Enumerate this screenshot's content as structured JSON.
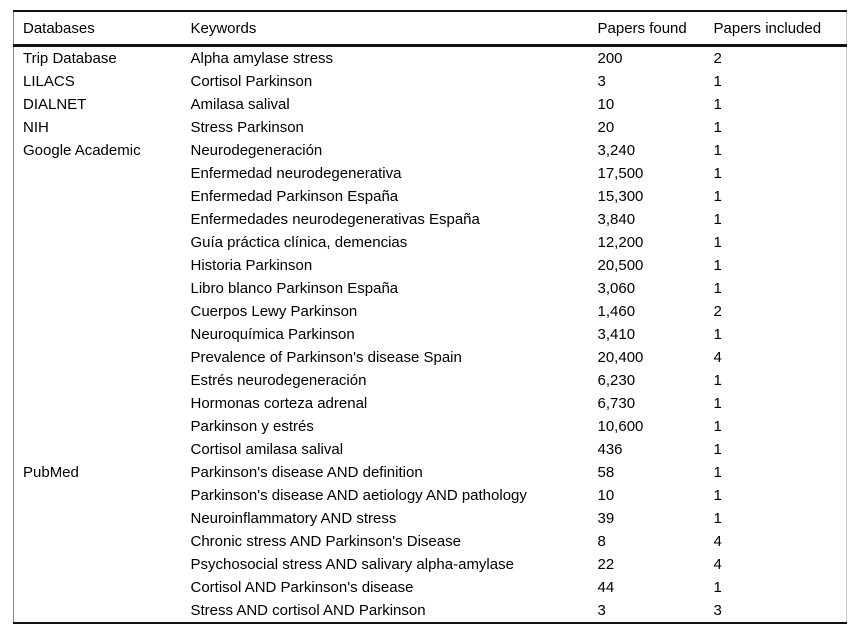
{
  "table": {
    "headers": [
      "Databases",
      "Keywords",
      "Papers found",
      "Papers included"
    ],
    "rows": [
      [
        "Trip Database",
        "Alpha amylase stress",
        "200",
        "2"
      ],
      [
        "LILACS",
        "Cortisol Parkinson",
        "3",
        "1"
      ],
      [
        "DIALNET",
        "Amilasa salival",
        "10",
        "1"
      ],
      [
        "NIH",
        "Stress Parkinson",
        "20",
        "1"
      ],
      [
        "Google Academic",
        "Neurodegeneración",
        "3,240",
        "1"
      ],
      [
        "",
        "Enfermedad neurodegenerativa",
        "17,500",
        "1"
      ],
      [
        "",
        "Enfermedad Parkinson España",
        "15,300",
        "1"
      ],
      [
        "",
        "Enfermedades neurodegenerativas España",
        "3,840",
        "1"
      ],
      [
        "",
        "Guía práctica clínica, demencias",
        "12,200",
        "1"
      ],
      [
        "",
        "Historia Parkinson",
        "20,500",
        "1"
      ],
      [
        "",
        "Libro blanco Parkinson España",
        "3,060",
        "1"
      ],
      [
        "",
        "Cuerpos Lewy Parkinson",
        "1,460",
        "2"
      ],
      [
        "",
        "Neuroquímica Parkinson",
        "3,410",
        "1"
      ],
      [
        "",
        "Prevalence of Parkinson's disease Spain",
        "20,400",
        "4"
      ],
      [
        "",
        "Estrés neurodegeneración",
        "6,230",
        "1"
      ],
      [
        "",
        "Hormonas corteza adrenal",
        "6,730",
        "1"
      ],
      [
        "",
        "Parkinson y estrés",
        "10,600",
        "1"
      ],
      [
        "",
        "Cortisol amilasa salival",
        "436",
        "1"
      ],
      [
        "PubMed",
        "Parkinson's disease AND definition",
        "58",
        "1"
      ],
      [
        "",
        "Parkinson's disease AND aetiology AND pathology",
        "10",
        "1"
      ],
      [
        "",
        "Neuroinflammatory AND stress",
        "39",
        "1"
      ],
      [
        "",
        "Chronic stress AND Parkinson's Disease",
        "8",
        "4"
      ],
      [
        "",
        "Psychosocial stress AND salivary alpha-amylase",
        "22",
        "4"
      ],
      [
        "",
        "Cortisol AND Parkinson's disease",
        "44",
        "1"
      ],
      [
        "",
        "Stress AND cortisol AND Parkinson",
        "3",
        "3"
      ]
    ],
    "column_cell_names": [
      "database-cell",
      "keyword-cell",
      "papers-found-cell",
      "papers-included-cell"
    ]
  }
}
